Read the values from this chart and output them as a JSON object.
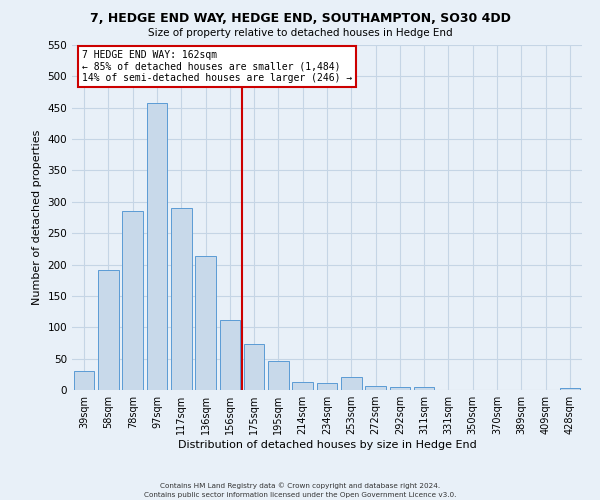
{
  "title": "7, HEDGE END WAY, HEDGE END, SOUTHAMPTON, SO30 4DD",
  "subtitle": "Size of property relative to detached houses in Hedge End",
  "xlabel": "Distribution of detached houses by size in Hedge End",
  "ylabel": "Number of detached properties",
  "bar_color": "#c8d9ea",
  "bar_edge_color": "#5b9bd5",
  "categories": [
    "39sqm",
    "58sqm",
    "78sqm",
    "97sqm",
    "117sqm",
    "136sqm",
    "156sqm",
    "175sqm",
    "195sqm",
    "214sqm",
    "234sqm",
    "253sqm",
    "272sqm",
    "292sqm",
    "311sqm",
    "331sqm",
    "350sqm",
    "370sqm",
    "389sqm",
    "409sqm",
    "428sqm"
  ],
  "values": [
    31,
    192,
    285,
    458,
    290,
    213,
    111,
    73,
    46,
    12,
    11,
    21,
    7,
    4,
    4,
    0,
    0,
    0,
    0,
    0,
    3
  ],
  "ylim": [
    0,
    550
  ],
  "yticks": [
    0,
    50,
    100,
    150,
    200,
    250,
    300,
    350,
    400,
    450,
    500,
    550
  ],
  "vline_x": 6.5,
  "vline_color": "#cc0000",
  "annotation_title": "7 HEDGE END WAY: 162sqm",
  "annotation_line1": "← 85% of detached houses are smaller (1,484)",
  "annotation_line2": "14% of semi-detached houses are larger (246) →",
  "annotation_box_color": "#ffffff",
  "annotation_box_edge": "#cc0000",
  "grid_color": "#c5d5e5",
  "background_color": "#e8f0f8",
  "footer1": "Contains HM Land Registry data © Crown copyright and database right 2024.",
  "footer2": "Contains public sector information licensed under the Open Government Licence v3.0."
}
